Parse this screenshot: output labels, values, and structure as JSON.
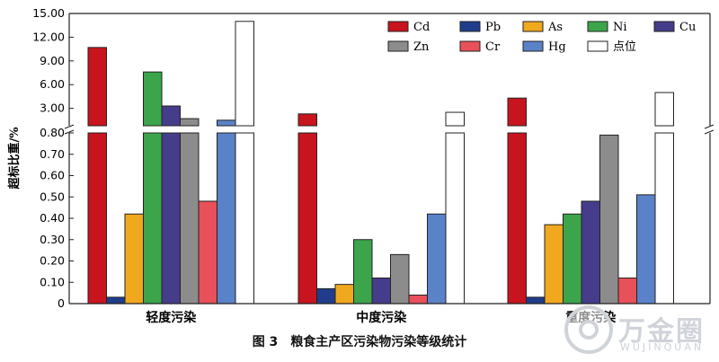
{
  "chart_data": {
    "type": "bar",
    "ylabel": "超标比重/%",
    "categories": [
      "轻度污染",
      "中度污染",
      "重度污染"
    ],
    "y_axis_break": {
      "lower_range": [
        0,
        0.8
      ],
      "upper_range": [
        0.8,
        15.0
      ]
    },
    "lower_ticks": [
      "0",
      "0.10",
      "0.20",
      "0.30",
      "0.40",
      "0.50",
      "0.60",
      "0.70",
      "0.80"
    ],
    "upper_ticks": [
      "3.00",
      "6.00",
      "9.00",
      "12.00",
      "15.00"
    ],
    "legend_placement": "top-right",
    "series": [
      {
        "name": "Cd",
        "color": "#c8141e",
        "hollow": false,
        "values": [
          10.7,
          2.3,
          4.3
        ]
      },
      {
        "name": "Pb",
        "color": "#1f3d8c",
        "hollow": false,
        "values": [
          0.03,
          0.07,
          0.03
        ]
      },
      {
        "name": "As",
        "color": "#f0a81e",
        "hollow": false,
        "values": [
          0.42,
          0.09,
          0.37
        ]
      },
      {
        "name": "Ni",
        "color": "#3ca54b",
        "hollow": false,
        "values": [
          7.6,
          0.3,
          0.42
        ]
      },
      {
        "name": "Cu",
        "color": "#463c8c",
        "hollow": false,
        "values": [
          3.3,
          0.12,
          0.48
        ]
      },
      {
        "name": "Zn",
        "color": "#8c8c8c",
        "hollow": false,
        "values": [
          1.7,
          0.23,
          0.79
        ]
      },
      {
        "name": "Cr",
        "color": "#e8505a",
        "hollow": false,
        "values": [
          0.48,
          0.04,
          0.12
        ]
      },
      {
        "name": "Hg",
        "color": "#5a82c8",
        "hollow": false,
        "values": [
          1.5,
          0.42,
          0.51
        ]
      },
      {
        "name": "点位",
        "color": "#ffffff",
        "hollow": true,
        "values": [
          14.0,
          2.5,
          5.0
        ]
      }
    ]
  },
  "caption": {
    "figure_number": "图 3",
    "text": "粮食主产区污染物污染等级统计"
  },
  "watermark": {
    "text": "万金圈",
    "sub": "WUJINQUAN"
  }
}
